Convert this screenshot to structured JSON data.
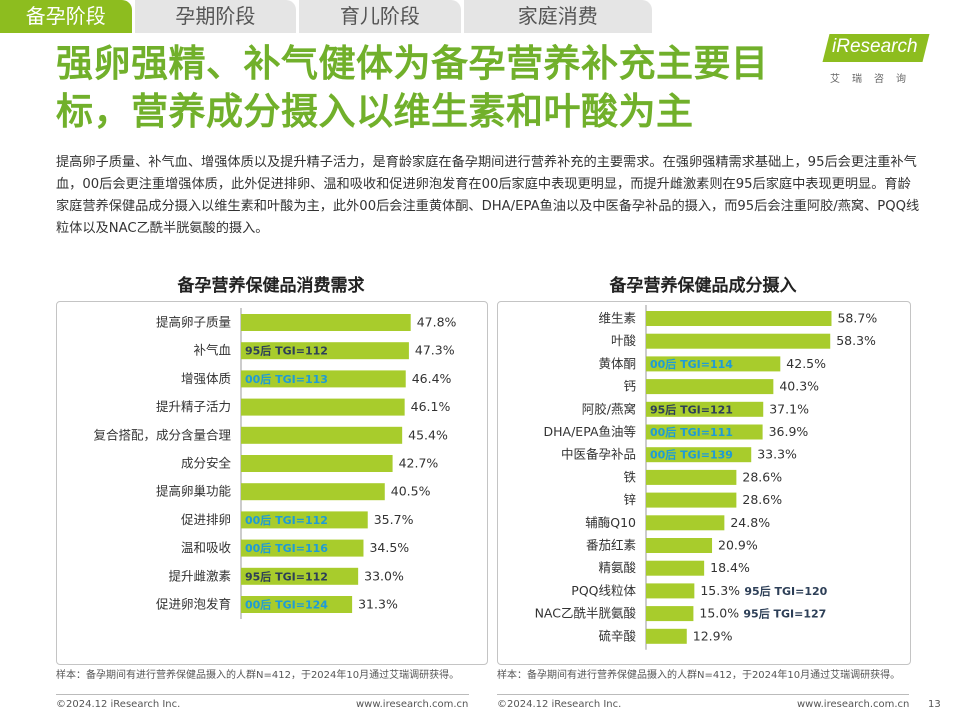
{
  "tabs": [
    {
      "label": "备孕阶段",
      "active": true
    },
    {
      "label": "孕期阶段",
      "active": false
    },
    {
      "label": "育儿阶段",
      "active": false
    },
    {
      "label": "家庭消费",
      "active": false
    }
  ],
  "logo": {
    "name": "iResearch",
    "sub": "艾瑞咨询"
  },
  "title": "强卵强精、补气健体为备孕营养补充主要目标，营养成分摄入以维生素和叶酸为主",
  "summary": "提高卵子质量、补气血、增强体质以及提升精子活力，是育龄家庭在备孕期间进行营养补充的主要需求。在强卵强精需求基础上，95后会更注重补气血，00后会更注重增强体质，此外促进排卵、温和吸收和促进卵泡发育在00后家庭中表现更明显，而提升雌激素则在95后家庭中表现更明显。育龄家庭营养保健品成分摄入以维生素和叶酸为主，此外00后会注重黄体酮、DHA/EPA鱼油以及中医备孕补品的摄入，而95后会注重阿胶/燕窝、PQQ线粒体以及NAC乙酰半胱氨酸的摄入。",
  "colors": {
    "bar": "#a8cc2c",
    "tgi_95": "#2d3f57",
    "tgi_00": "#1e9bd7",
    "title_green": "#71b02b"
  },
  "chart_data": [
    {
      "type": "bar",
      "orientation": "horizontal",
      "title": "备孕营养保健品消费需求",
      "categories": [
        "提高卵子质量",
        "补气血",
        "增强体质",
        "提升精子活力",
        "复合搭配，成分含量合理",
        "成分安全",
        "提高卵巢功能",
        "促进排卵",
        "温和吸收",
        "提升雌激素",
        "促进卵泡发育"
      ],
      "values": [
        47.8,
        47.3,
        46.4,
        46.1,
        45.4,
        42.7,
        40.5,
        35.7,
        34.5,
        33.0,
        31.3
      ],
      "value_labels": [
        "47.8%",
        "47.3%",
        "46.4%",
        "46.1%",
        "45.4%",
        "42.7%",
        "40.5%",
        "35.7%",
        "34.5%",
        "33.0%",
        "31.3%"
      ],
      "tgi_labels": [
        "",
        "95后 TGI=112",
        "00后 TGI=113",
        "",
        "",
        "",
        "",
        "00后 TGI=112",
        "00后 TGI=116",
        "95后 TGI=112",
        "00后 TGI=124"
      ],
      "tgi_groups": [
        "",
        "95",
        "00",
        "",
        "",
        "",
        "",
        "00",
        "00",
        "95",
        "00"
      ],
      "xlim": [
        0,
        50
      ]
    },
    {
      "type": "bar",
      "orientation": "horizontal",
      "title": "备孕营养保健品成分摄入",
      "categories": [
        "维生素",
        "叶酸",
        "黄体酮",
        "钙",
        "阿胶/燕窝",
        "DHA/EPA鱼油等",
        "中医备孕补品",
        "铁",
        "锌",
        "辅酶Q10",
        "番茄红素",
        "精氨酸",
        "PQQ线粒体",
        "NAC乙酰半胱氨酸",
        "硫辛酸"
      ],
      "values": [
        58.7,
        58.3,
        42.5,
        40.3,
        37.1,
        36.9,
        33.3,
        28.6,
        28.6,
        24.8,
        20.9,
        18.4,
        15.3,
        15.0,
        12.9
      ],
      "value_labels": [
        "58.7%",
        "58.3%",
        "42.5%",
        "40.3%",
        "37.1%",
        "36.9%",
        "33.3%",
        "28.6%",
        "28.6%",
        "24.8%",
        "20.9%",
        "18.4%",
        "15.3%",
        "15.0%",
        "12.9%"
      ],
      "tgi_labels": [
        "",
        "",
        "00后 TGI=114",
        "",
        "95后 TGI=121",
        "00后 TGI=111",
        "00后 TGI=139",
        "",
        "",
        "",
        "",
        "",
        "95后 TGI=120",
        "95后 TGI=127",
        ""
      ],
      "tgi_groups": [
        "",
        "",
        "00",
        "",
        "95",
        "00",
        "00",
        "",
        "",
        "",
        "",
        "",
        "95",
        "95",
        ""
      ],
      "xlim": [
        0,
        60
      ]
    }
  ],
  "notes": [
    "样本：备孕期间有进行营养保健品摄入的人群N=412，于2024年10月通过艾瑞调研获得。",
    "样本：备孕期间有进行营养保健品摄入的人群N=412，于2024年10月通过艾瑞调研获得。"
  ],
  "footer": {
    "copyright": "©2024.12 iResearch Inc.",
    "url": "www.iresearch.com.cn",
    "page": "13"
  }
}
